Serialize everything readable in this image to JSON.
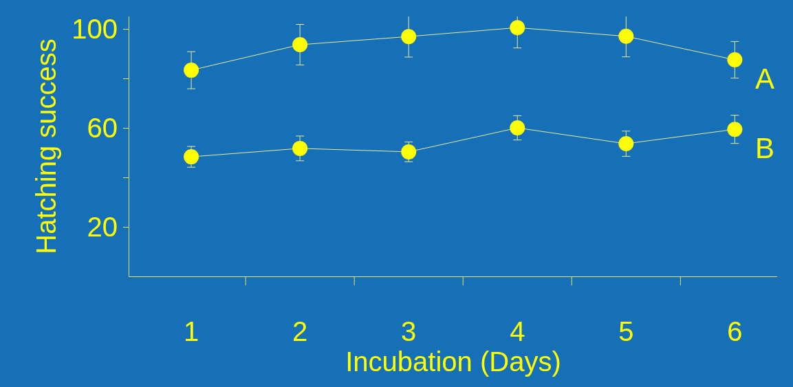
{
  "chart_data": {
    "type": "line",
    "xlabel": "Incubation (Days)",
    "ylabel": "Hatching success",
    "categories": [
      "1",
      "2",
      "3",
      "4",
      "5",
      "6"
    ],
    "series": [
      {
        "name": "A",
        "color": "#ffff00",
        "values": [
          83.3,
          93.6,
          96.9,
          100.5,
          97,
          87.5
        ],
        "errors": [
          7.5,
          8.2,
          8.3,
          8.2,
          8.3,
          7.4
        ]
      },
      {
        "name": "B",
        "color": "#ffff00",
        "values": [
          48.3,
          51.7,
          50.3,
          60,
          53.6,
          59.4
        ],
        "errors": [
          4.2,
          5,
          4,
          4.9,
          5.1,
          5.7
        ]
      }
    ],
    "ylim": [
      0,
      105
    ],
    "yticks": [
      20,
      {
        "value": 40,
        "label": null
      },
      60,
      {
        "value": 80,
        "label": null
      },
      100
    ],
    "grid": false,
    "legend": false,
    "marker": "circle",
    "line_style": "solid"
  }
}
